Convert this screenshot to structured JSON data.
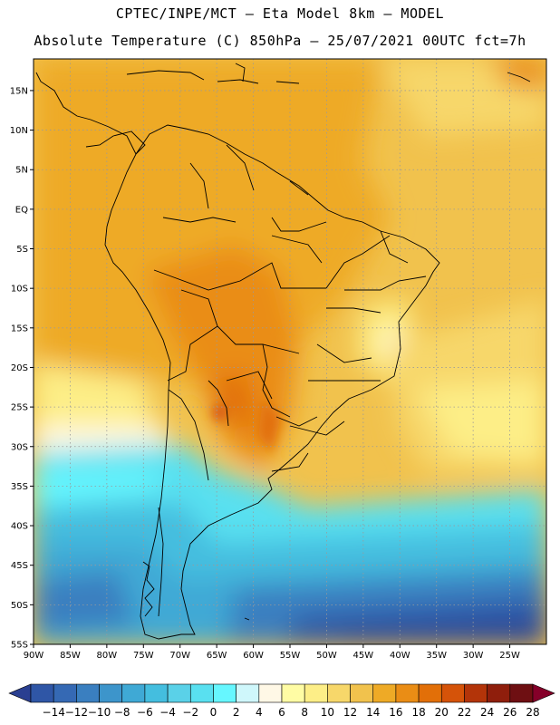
{
  "header": {
    "line1": "CPTEC/INPE/MCT –  Eta Model 8km – MODEL",
    "line2": "Absolute Temperature (C) 850hPa – 25/07/2021 00UTC fct=7h"
  },
  "map": {
    "lat_labels": [
      "15N",
      "10N",
      "5N",
      "EQ",
      "5S",
      "10S",
      "15S",
      "20S",
      "25S",
      "30S",
      "35S",
      "40S",
      "45S",
      "50S",
      "55S"
    ],
    "lon_labels": [
      "90W",
      "85W",
      "80W",
      "75W",
      "70W",
      "65W",
      "60W",
      "55W",
      "50W",
      "45W",
      "40W",
      "35W",
      "30W",
      "25W"
    ],
    "lat_range": [
      -55,
      19
    ],
    "lon_range": [
      -90,
      -20
    ],
    "grid": "dotted",
    "coastline_color": "#000000"
  },
  "colorbar": {
    "labels": [
      "-14",
      "-12",
      "-10",
      "-8",
      "-6",
      "-4",
      "-2",
      "0",
      "2",
      "4",
      "6",
      "8",
      "10",
      "12",
      "14",
      "16",
      "18",
      "20",
      "22",
      "24",
      "26",
      "28"
    ],
    "colors": [
      "#2a3f91",
      "#2f56a6",
      "#3569b4",
      "#3a7fc0",
      "#3d95cb",
      "#3fa9d5",
      "#44bedf",
      "#5ad1e8",
      "#59e0f0",
      "#66f7ff",
      "#cff7fb",
      "#fff8e6",
      "#fffca4",
      "#fdee87",
      "#f7d76a",
      "#f1c24d",
      "#eeaa26",
      "#ea8d15",
      "#e26f08",
      "#d55309",
      "#b33409",
      "#8f1e0c",
      "#6e0f12",
      "#850029"
    ]
  }
}
